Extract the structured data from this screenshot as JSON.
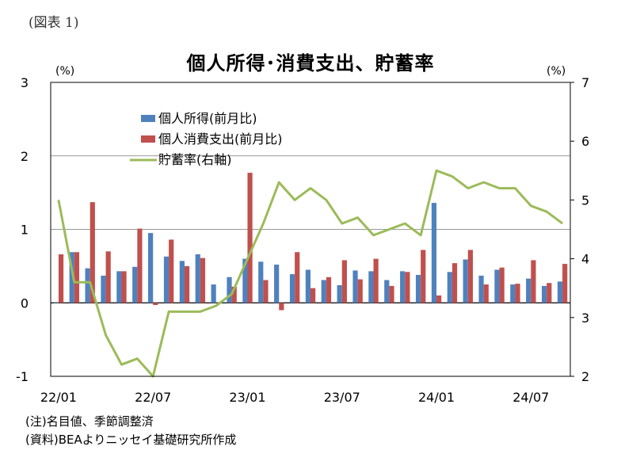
{
  "figure_label": "(図表 1)",
  "notes": [
    "(注)名目値、季節調整済",
    "(資料)BEAよりニッセイ基礎研究所作成"
  ],
  "colors": {
    "income": "#4f81bd",
    "consumption": "#c0504d",
    "savings": "#9bbb59",
    "grid": "#000000"
  },
  "chart_data": {
    "type": "bar",
    "title": "個人所得･消費支出、貯蓄率",
    "y_left_unit": "(%)",
    "y_right_unit": "(%)",
    "ylim_left": [
      -1,
      3
    ],
    "ylim_right": [
      2,
      7
    ],
    "y_left_ticks": [
      "-1",
      "0",
      "1",
      "2",
      "3"
    ],
    "y_right_ticks": [
      "2",
      "3",
      "4",
      "5",
      "6",
      "7"
    ],
    "grid": true,
    "legend_position": "top-left",
    "x_tick_labels": [
      "22/01",
      "22/07",
      "23/01",
      "23/07",
      "24/01",
      "24/07"
    ],
    "x_tick_indices": [
      0,
      6,
      12,
      18,
      24,
      30
    ],
    "months": [
      "22/01",
      "22/02",
      "22/03",
      "22/04",
      "22/05",
      "22/06",
      "22/07",
      "22/08",
      "22/09",
      "22/10",
      "22/11",
      "22/12",
      "23/01",
      "23/02",
      "23/03",
      "23/04",
      "23/05",
      "23/06",
      "23/07",
      "23/08",
      "23/09",
      "23/10",
      "23/11",
      "23/12",
      "24/01",
      "24/02",
      "24/03",
      "24/04",
      "24/05",
      "24/06",
      "24/07",
      "24/08",
      "24/09"
    ],
    "series": [
      {
        "name": "個人所得(前月比)",
        "axis": "left",
        "kind": "bar",
        "values": [
          0.0,
          0.69,
          0.47,
          0.37,
          0.43,
          0.49,
          0.95,
          0.63,
          0.57,
          0.66,
          0.25,
          0.35,
          0.6,
          0.56,
          0.52,
          0.39,
          0.45,
          0.31,
          0.24,
          0.44,
          0.43,
          0.31,
          0.43,
          0.38,
          1.36,
          0.42,
          0.59,
          0.37,
          0.45,
          0.25,
          0.33,
          0.23,
          0.29
        ]
      },
      {
        "name": "個人消費支出(前月比)",
        "axis": "left",
        "kind": "bar",
        "values": [
          0.66,
          0.69,
          1.37,
          0.7,
          0.43,
          1.01,
          -0.03,
          0.86,
          0.5,
          0.61,
          -0.01,
          0.22,
          1.77,
          0.31,
          -0.1,
          0.69,
          0.2,
          0.35,
          0.58,
          0.32,
          0.6,
          0.23,
          0.42,
          0.72,
          0.1,
          0.54,
          0.72,
          0.25,
          0.48,
          0.26,
          0.58,
          0.27,
          0.53
        ]
      },
      {
        "name": "貯蓄率(右軸)",
        "axis": "right",
        "kind": "line",
        "values": [
          5.0,
          3.6,
          3.6,
          2.7,
          2.2,
          2.3,
          2.0,
          3.1,
          3.1,
          3.1,
          3.2,
          3.4,
          4.0,
          4.6,
          5.3,
          5.0,
          5.2,
          5.0,
          4.6,
          4.7,
          4.4,
          4.5,
          4.6,
          4.4,
          5.5,
          5.4,
          5.2,
          5.3,
          5.2,
          5.2,
          4.9,
          4.8,
          4.6
        ]
      }
    ]
  }
}
